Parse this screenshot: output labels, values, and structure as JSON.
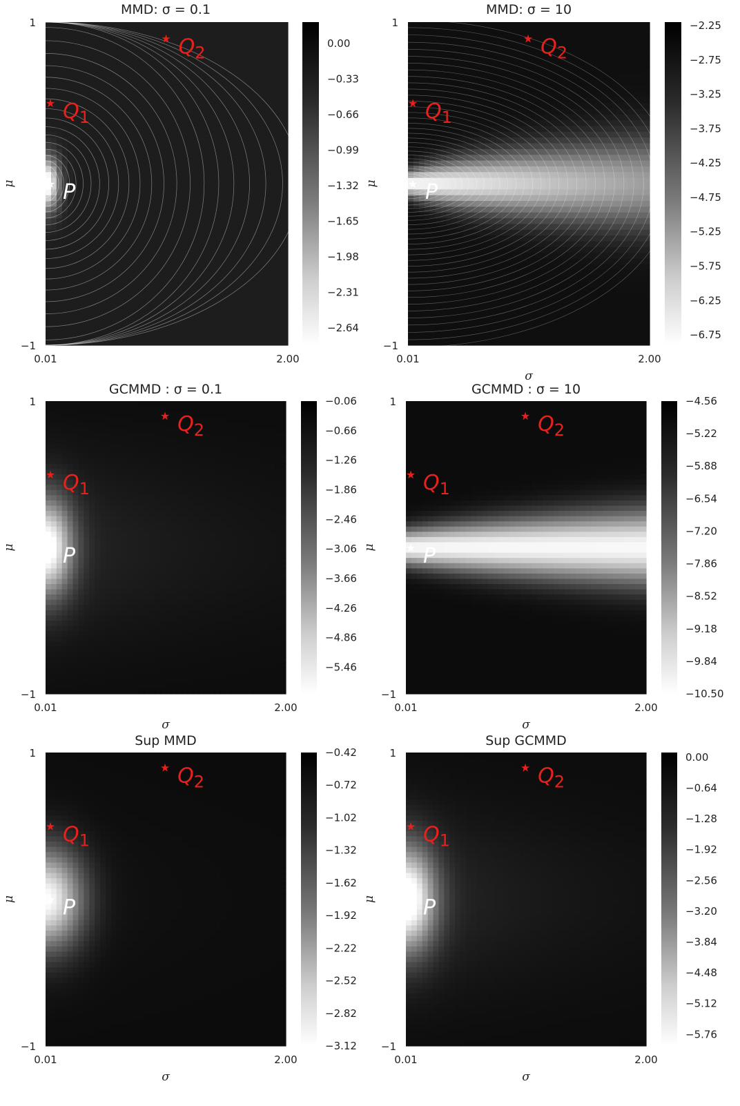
{
  "chart_data": [
    {
      "type": "heatmap",
      "title": "MMD: σ = 0.1",
      "xlabel": "",
      "ylabel": "μ",
      "x_ticks": [
        "0.01",
        "2.00"
      ],
      "y_ticks": [
        "1",
        "−1"
      ],
      "xlim": [
        0.01,
        2.0
      ],
      "ylim": [
        -1,
        1
      ],
      "colorbar_ticks": [
        "0.00",
        "−0.33",
        "−0.66",
        "−0.99",
        "−1.32",
        "−1.65",
        "−1.98",
        "−2.31",
        "−2.64"
      ],
      "colorbar_range": [
        -2.8,
        0.2
      ],
      "contour_lines": true,
      "field": "mmd_small",
      "points": [
        {
          "label": "P",
          "sigma": 0.05,
          "mu": 0.0,
          "color": "#ffffff"
        },
        {
          "label": "Q",
          "sub": "1",
          "sigma": 0.05,
          "mu": 0.5,
          "color": "#e8211d"
        },
        {
          "label": "Q",
          "sub": "2",
          "sigma": 1.0,
          "mu": 0.9,
          "color": "#e8211d"
        }
      ]
    },
    {
      "type": "heatmap",
      "title": "MMD: σ = 10",
      "xlabel": "σ",
      "ylabel": "μ",
      "x_ticks": [
        "0.01",
        "2.00"
      ],
      "y_ticks": [
        "1",
        "−1"
      ],
      "xlim": [
        0.01,
        2.0
      ],
      "ylim": [
        -1,
        1
      ],
      "colorbar_ticks": [
        "−2.25",
        "−2.75",
        "−3.25",
        "−3.75",
        "−4.25",
        "−4.75",
        "−5.25",
        "−5.75",
        "−6.25",
        "−6.75"
      ],
      "colorbar_range": [
        -6.9,
        -2.2
      ],
      "contour_lines": true,
      "field": "mmd_large",
      "points": [
        {
          "label": "P",
          "sigma": 0.05,
          "mu": 0.0,
          "color": "#ffffff"
        },
        {
          "label": "Q",
          "sub": "1",
          "sigma": 0.05,
          "mu": 0.5,
          "color": "#e8211d"
        },
        {
          "label": "Q",
          "sub": "2",
          "sigma": 1.0,
          "mu": 0.9,
          "color": "#e8211d"
        }
      ]
    },
    {
      "type": "heatmap",
      "title": "GCMMD : σ = 0.1",
      "xlabel": "σ",
      "ylabel": "μ",
      "x_ticks": [
        "0.01",
        "2.00"
      ],
      "y_ticks": [
        "1",
        "−1"
      ],
      "xlim": [
        0.01,
        2.0
      ],
      "ylim": [
        -1,
        1
      ],
      "colorbar_ticks": [
        "−0.06",
        "−0.66",
        "−1.26",
        "−1.86",
        "−2.46",
        "−3.06",
        "−3.66",
        "−4.26",
        "−4.86",
        "−5.46"
      ],
      "colorbar_range": [
        -6.0,
        -0.06
      ],
      "contour_lines": false,
      "field": "gc_small",
      "points": [
        {
          "label": "P",
          "sigma": 0.05,
          "mu": 0.0,
          "color": "#ffffff"
        },
        {
          "label": "Q",
          "sub": "1",
          "sigma": 0.05,
          "mu": 0.5,
          "color": "#e8211d"
        },
        {
          "label": "Q",
          "sub": "2",
          "sigma": 1.0,
          "mu": 0.9,
          "color": "#e8211d"
        }
      ]
    },
    {
      "type": "heatmap",
      "title": "GCMMD : σ = 10",
      "xlabel": "σ",
      "ylabel": "μ",
      "x_ticks": [
        "0.01",
        "2.00"
      ],
      "y_ticks": [
        "1",
        "−1"
      ],
      "xlim": [
        0.01,
        2.0
      ],
      "ylim": [
        -1,
        1
      ],
      "colorbar_ticks": [
        "−4.56",
        "−5.22",
        "−5.88",
        "−6.54",
        "−7.20",
        "−7.86",
        "−8.52",
        "−9.18",
        "−9.84",
        "−10.50"
      ],
      "colorbar_range": [
        -10.5,
        -4.56
      ],
      "contour_lines": false,
      "field": "gc_large",
      "points": [
        {
          "label": "P",
          "sigma": 0.05,
          "mu": 0.0,
          "color": "#ffffff"
        },
        {
          "label": "Q",
          "sub": "1",
          "sigma": 0.05,
          "mu": 0.5,
          "color": "#e8211d"
        },
        {
          "label": "Q",
          "sub": "2",
          "sigma": 1.0,
          "mu": 0.9,
          "color": "#e8211d"
        }
      ]
    },
    {
      "type": "heatmap",
      "title": "Sup MMD",
      "xlabel": "σ",
      "ylabel": "μ",
      "x_ticks": [
        "0.01",
        "2.00"
      ],
      "y_ticks": [
        "1",
        "−1"
      ],
      "xlim": [
        0.01,
        2.0
      ],
      "ylim": [
        -1,
        1
      ],
      "colorbar_ticks": [
        "−0.42",
        "−0.72",
        "−1.02",
        "−1.32",
        "−1.62",
        "−1.92",
        "−2.22",
        "−2.52",
        "−2.82",
        "−3.12"
      ],
      "colorbar_range": [
        -3.12,
        -0.42
      ],
      "contour_lines": false,
      "field": "sup_mmd",
      "points": [
        {
          "label": "P",
          "sigma": 0.05,
          "mu": 0.0,
          "color": "#ffffff"
        },
        {
          "label": "Q",
          "sub": "1",
          "sigma": 0.05,
          "mu": 0.5,
          "color": "#e8211d"
        },
        {
          "label": "Q",
          "sub": "2",
          "sigma": 1.0,
          "mu": 0.9,
          "color": "#e8211d"
        }
      ]
    },
    {
      "type": "heatmap",
      "title": "Sup GCMMD",
      "xlabel": "σ",
      "ylabel": "μ",
      "x_ticks": [
        "0.01",
        "2.00"
      ],
      "y_ticks": [
        "1",
        "−1"
      ],
      "xlim": [
        0.01,
        2.0
      ],
      "ylim": [
        -1,
        1
      ],
      "colorbar_ticks": [
        "0.00",
        "−0.64",
        "−1.28",
        "−1.92",
        "−2.56",
        "−3.20",
        "−3.84",
        "−4.48",
        "−5.12",
        "−5.76"
      ],
      "colorbar_range": [
        -6.0,
        0.1
      ],
      "contour_lines": false,
      "field": "sup_gc",
      "points": [
        {
          "label": "P",
          "sigma": 0.05,
          "mu": 0.0,
          "color": "#ffffff"
        },
        {
          "label": "Q",
          "sub": "1",
          "sigma": 0.05,
          "mu": 0.5,
          "color": "#e8211d"
        },
        {
          "label": "Q",
          "sub": "2",
          "sigma": 1.0,
          "mu": 0.9,
          "color": "#e8211d"
        }
      ]
    }
  ]
}
